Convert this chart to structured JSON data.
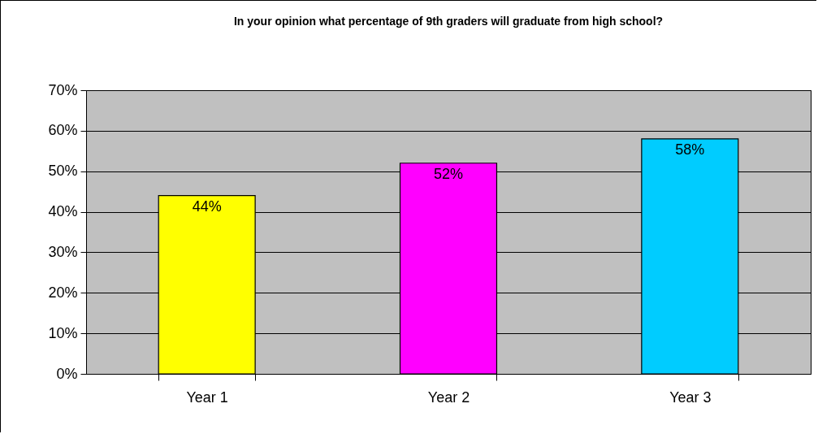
{
  "chart_data": {
    "type": "bar",
    "title": "In your opinion what percentage of 9th graders will graduate from high school?",
    "categories": [
      "Year 1",
      "Year 2",
      "Year 3"
    ],
    "values": [
      44,
      52,
      58
    ],
    "colors": [
      "#ffff00",
      "#ff00ff",
      "#00ccff"
    ],
    "value_labels": [
      "44%",
      "52%",
      "58%"
    ],
    "ylim": [
      0,
      70
    ],
    "yticks": [
      {
        "value": 0,
        "label": "0%"
      },
      {
        "value": 10,
        "label": "10%"
      },
      {
        "value": 20,
        "label": "20%"
      },
      {
        "value": 30,
        "label": "30%"
      },
      {
        "value": 40,
        "label": "40%"
      },
      {
        "value": 50,
        "label": "50%"
      },
      {
        "value": 60,
        "label": "60%"
      },
      {
        "value": 70,
        "label": "70%"
      }
    ],
    "grid": "y"
  }
}
